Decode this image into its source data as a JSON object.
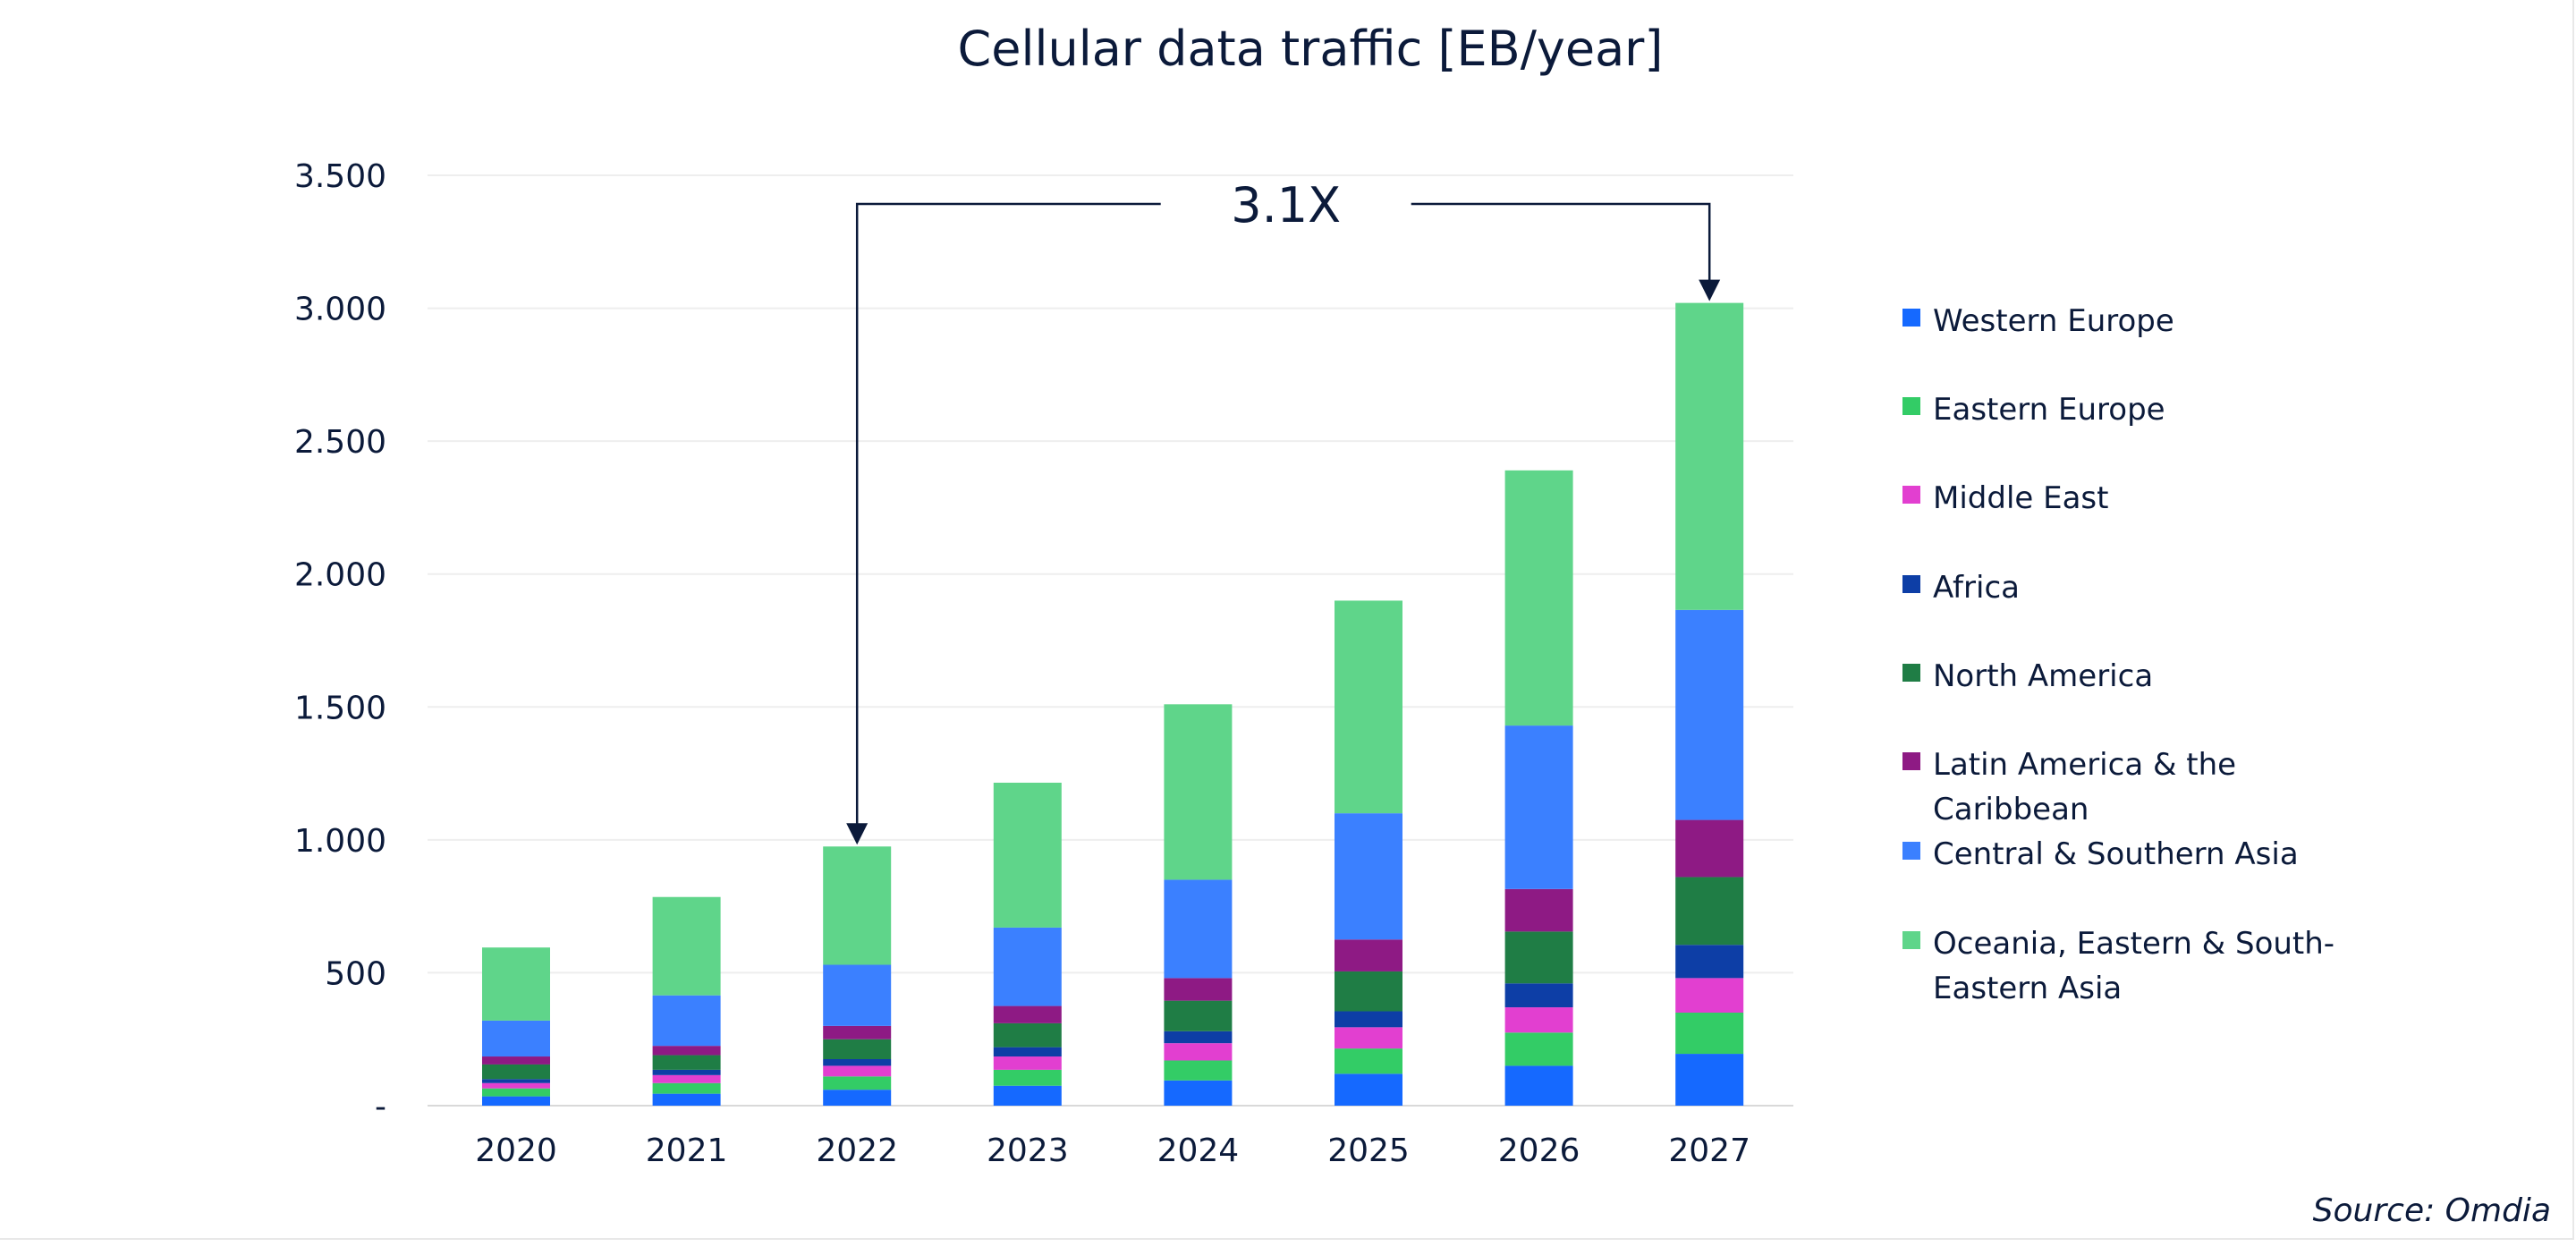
{
  "chart_data": {
    "type": "bar",
    "stacked": true,
    "title": "Cellular data traffic [EB/year]",
    "xlabel": "",
    "ylabel": "",
    "categories": [
      "2020",
      "2021",
      "2022",
      "2023",
      "2024",
      "2025",
      "2026",
      "2027"
    ],
    "ylim": [
      0,
      3500
    ],
    "yticks": [
      0,
      500,
      1000,
      1500,
      2000,
      2500,
      3000,
      3500
    ],
    "ytick_labels": [
      "-",
      "500",
      "1.000",
      "1.500",
      "2.000",
      "2.500",
      "3.000",
      "3.500"
    ],
    "grid": true,
    "legend_position": "right",
    "series": [
      {
        "name": "Western Europe",
        "color": "#1569ff",
        "values": [
          35,
          45,
          60,
          75,
          95,
          120,
          150,
          195
        ]
      },
      {
        "name": "Eastern Europe",
        "color": "#33cc66",
        "values": [
          30,
          40,
          50,
          60,
          75,
          95,
          125,
          155
        ]
      },
      {
        "name": "Middle East",
        "color": "#e23fd0",
        "values": [
          20,
          30,
          40,
          50,
          65,
          80,
          95,
          130
        ]
      },
      {
        "name": "Africa",
        "color": "#0d3ea6",
        "values": [
          15,
          20,
          25,
          35,
          45,
          60,
          90,
          125
        ]
      },
      {
        "name": "North America",
        "color": "#1f7d45",
        "values": [
          55,
          55,
          75,
          90,
          115,
          150,
          195,
          255
        ]
      },
      {
        "name": "Latin America & the Caribbean",
        "color": "#8e1a84",
        "values": [
          30,
          35,
          50,
          65,
          85,
          120,
          160,
          215
        ]
      },
      {
        "name": "Central & Southern Asia",
        "color": "#3b80ff",
        "values": [
          135,
          190,
          230,
          295,
          370,
          475,
          615,
          790
        ]
      },
      {
        "name": "Oceania, Eastern & South-Eastern Asia",
        "color": "#5fd58a",
        "values": [
          275,
          370,
          445,
          545,
          660,
          800,
          960,
          1155
        ]
      }
    ],
    "annotation": {
      "text": "3.1X",
      "from": "2022",
      "to": "2027"
    }
  },
  "source": "Source: Omdia"
}
